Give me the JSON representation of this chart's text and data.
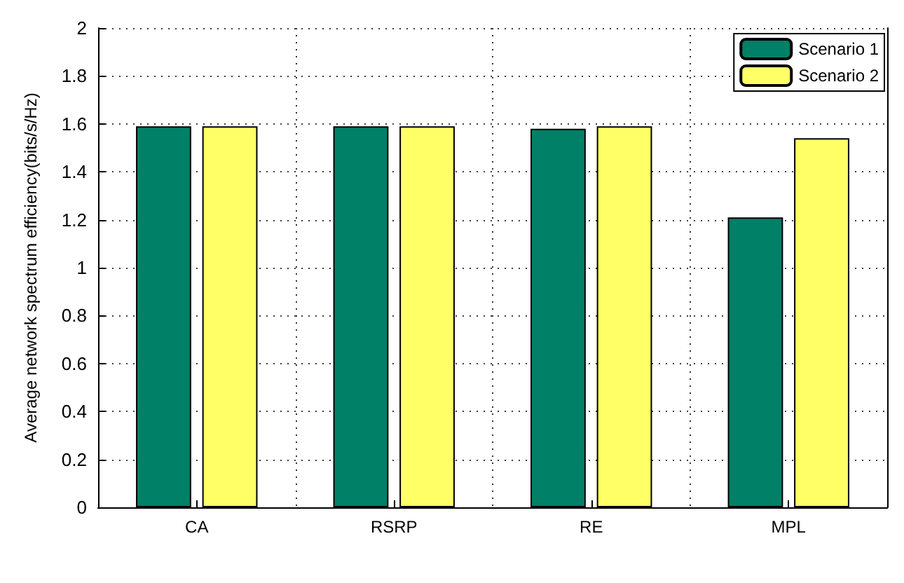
{
  "chart_data": {
    "type": "bar",
    "ylabel": "Average network spectrum efficiency(bits/s/Hz)",
    "categories": [
      "CA",
      "RSRP",
      "RE",
      "MPL"
    ],
    "series": [
      {
        "name": "Scenario 1",
        "color": "#008066",
        "values": [
          1.59,
          1.59,
          1.58,
          1.21
        ]
      },
      {
        "name": "Scenario 2",
        "color": "#ffff66",
        "values": [
          1.59,
          1.59,
          1.59,
          1.54
        ]
      }
    ],
    "ylim": [
      0,
      2
    ],
    "yticks": [
      0,
      0.2,
      0.4,
      0.6,
      0.8,
      1,
      1.2,
      1.4,
      1.6,
      1.8,
      2
    ],
    "grid": true,
    "legend": "top right"
  }
}
